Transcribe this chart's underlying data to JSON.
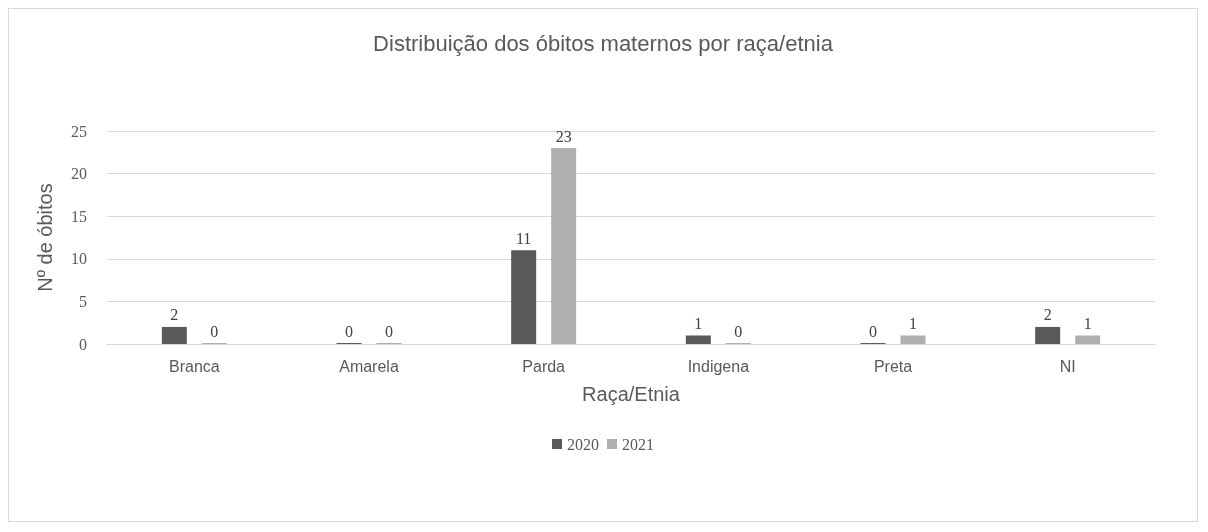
{
  "chart_data": {
    "type": "bar",
    "title": "Distribuição dos óbitos maternos por raça/etnia",
    "xlabel": "Raça/Etnia",
    "ylabel": "Nº de óbitos",
    "categories": [
      "Branca",
      "Amarela",
      "Parda",
      "Indigena",
      "Preta",
      "NI"
    ],
    "series": [
      {
        "name": "2020",
        "color": "#595959",
        "values": [
          2,
          0,
          11,
          1,
          0,
          2
        ]
      },
      {
        "name": "2021",
        "color": "#afafaf",
        "values": [
          0,
          0,
          23,
          0,
          1,
          1
        ]
      }
    ],
    "ylim": [
      0,
      25
    ],
    "yticks": [
      0,
      5,
      10,
      15,
      20,
      25
    ],
    "grid": "y",
    "legend": "bottom",
    "data_labels": true
  }
}
